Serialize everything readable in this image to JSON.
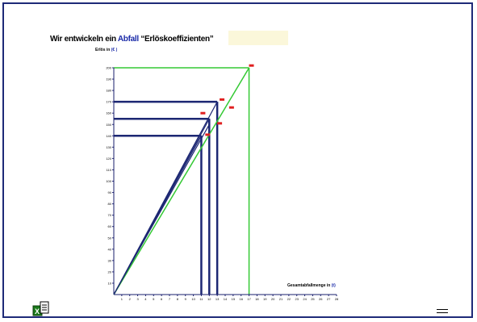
{
  "slide": {
    "title_part1": "Wir entwickeln ein ",
    "title_accent": "Abfall",
    "title_part2": " “Erlöskoeffizienten”",
    "y_axis_caption": "Erlös in",
    "y_axis_unit": "(€ )",
    "x_axis_caption": "Gesamtabfallmenge in",
    "x_axis_unit": "(t)"
  },
  "icons": {
    "app": "excel-file-icon",
    "menu": "menu-icon"
  },
  "colors": {
    "border": "#1e2a78",
    "axis": "#1a1f6e",
    "navy": "#1c2773",
    "green": "#34c934",
    "red": "#e02020",
    "highlight": "#fbf7da"
  },
  "chart_data": {
    "type": "line",
    "xlim": [
      0,
      28
    ],
    "ylim": [
      0,
      200
    ],
    "x_ticks": [
      1,
      2,
      3,
      4,
      5,
      6,
      7,
      8,
      9,
      10,
      11,
      12,
      13,
      14,
      15,
      16,
      17,
      18,
      19,
      20,
      21,
      22,
      23,
      24,
      25,
      26,
      27,
      28
    ],
    "y_ticks": [
      10,
      20,
      30,
      40,
      50,
      60,
      70,
      80,
      90,
      100,
      110,
      120,
      130,
      140,
      150,
      160,
      170,
      180,
      190,
      200
    ],
    "series": [
      {
        "color": "#34c934",
        "points": [
          [
            0,
            0
          ],
          [
            17,
            200
          ]
        ]
      },
      {
        "color": "#1c2773",
        "points": [
          [
            0,
            0
          ],
          [
            13,
            170
          ]
        ]
      },
      {
        "color": "#1c2773",
        "points": [
          [
            0,
            0
          ],
          [
            12,
            155
          ]
        ]
      },
      {
        "color": "#1c2773",
        "points": [
          [
            0,
            0
          ],
          [
            11,
            140
          ]
        ]
      },
      {
        "color": "#1c2773",
        "points": [
          [
            0,
            0
          ],
          [
            12,
            150
          ]
        ]
      }
    ],
    "guides": [
      {
        "color": "#34c934",
        "x": 17,
        "y": 200
      },
      {
        "color": "#1c2773",
        "x": 13,
        "y": 170
      },
      {
        "color": "#1c2773",
        "x": 12,
        "y": 155
      },
      {
        "color": "#1c2773",
        "x": 11,
        "y": 140
      }
    ],
    "markers": [
      {
        "x": 17.3,
        "y": 202
      },
      {
        "x": 13.6,
        "y": 172
      },
      {
        "x": 14.8,
        "y": 165
      },
      {
        "x": 13.3,
        "y": 151
      },
      {
        "x": 11.2,
        "y": 160
      },
      {
        "x": 11.8,
        "y": 141
      }
    ]
  }
}
